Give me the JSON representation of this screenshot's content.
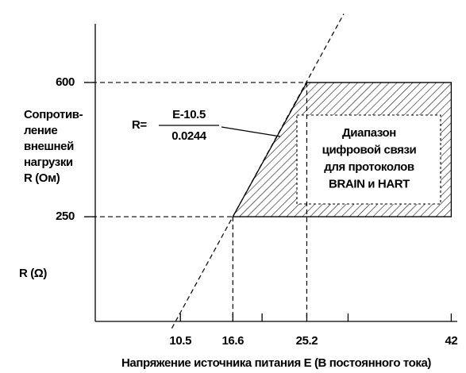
{
  "chart_data": {
    "type": "line",
    "xlabel": "Напряжение источника питания E (В постоянного тока)",
    "ylabel": [
      "Сопротив-",
      "ление",
      "внешней",
      "нагрузки",
      "R (Ом)"
    ],
    "ylabel_symbol": "R (Ω)",
    "xlim": [
      0.6,
      42.7
    ],
    "ylim": [
      -23,
      753
    ],
    "xticks": [
      10.5,
      16.6,
      25.2,
      42
    ],
    "xminor": [
      20,
      30
    ],
    "yticks": [
      250,
      600
    ],
    "load_line": {
      "x": [
        9.5,
        29.5
      ],
      "values": [
        -41,
        779
      ],
      "color": "#000000"
    },
    "formula": {
      "lhs": "R=",
      "numerator": "E-10.5",
      "denominator": "0.0244"
    },
    "region": {
      "x": [
        16.6,
        25.2,
        42,
        42
      ],
      "values": [
        250,
        600,
        600,
        250
      ],
      "label": [
        "Диапазон",
        "цифровой связи",
        "для протоколов",
        "BRAIN и HART"
      ]
    }
  }
}
